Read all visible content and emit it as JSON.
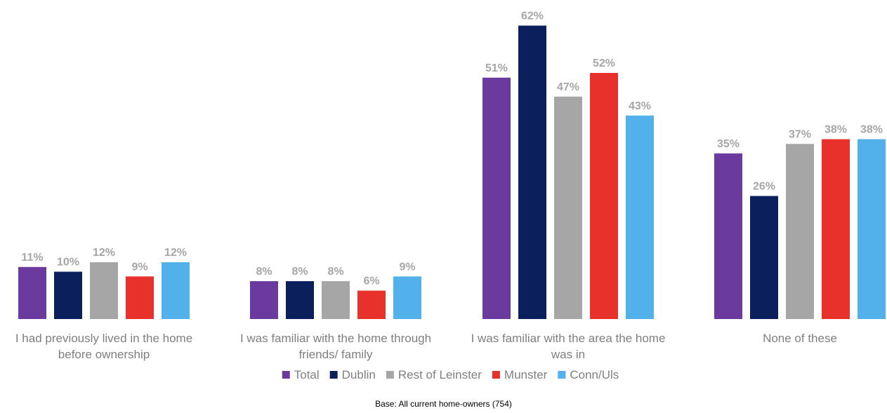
{
  "chart_data": {
    "type": "bar",
    "categories": [
      [
        "I had previously lived in the home",
        "before ownership"
      ],
      [
        "I was familiar with the home through",
        "friends/ family"
      ],
      [
        "I was familiar with the area the home",
        "was in"
      ],
      [
        "None of these"
      ]
    ],
    "series": [
      {
        "name": "Total",
        "color": "#6a3a9f",
        "values": [
          11,
          8,
          51,
          35
        ]
      },
      {
        "name": "Dublin",
        "color": "#0b1f5c",
        "values": [
          10,
          8,
          62,
          26
        ]
      },
      {
        "name": "Rest of Leinster",
        "color": "#a6a6a6",
        "values": [
          12,
          8,
          47,
          37
        ]
      },
      {
        "name": "Munster",
        "color": "#e8312a",
        "values": [
          9,
          6,
          52,
          38
        ]
      },
      {
        "name": "Conn/Uls",
        "color": "#52b0ea",
        "values": [
          12,
          9,
          43,
          38
        ]
      }
    ],
    "value_suffix": "%",
    "ylim": [
      0,
      65
    ],
    "grid": false,
    "legend_position": "bottom-center"
  },
  "note": "Base: All current home-owners (754)"
}
